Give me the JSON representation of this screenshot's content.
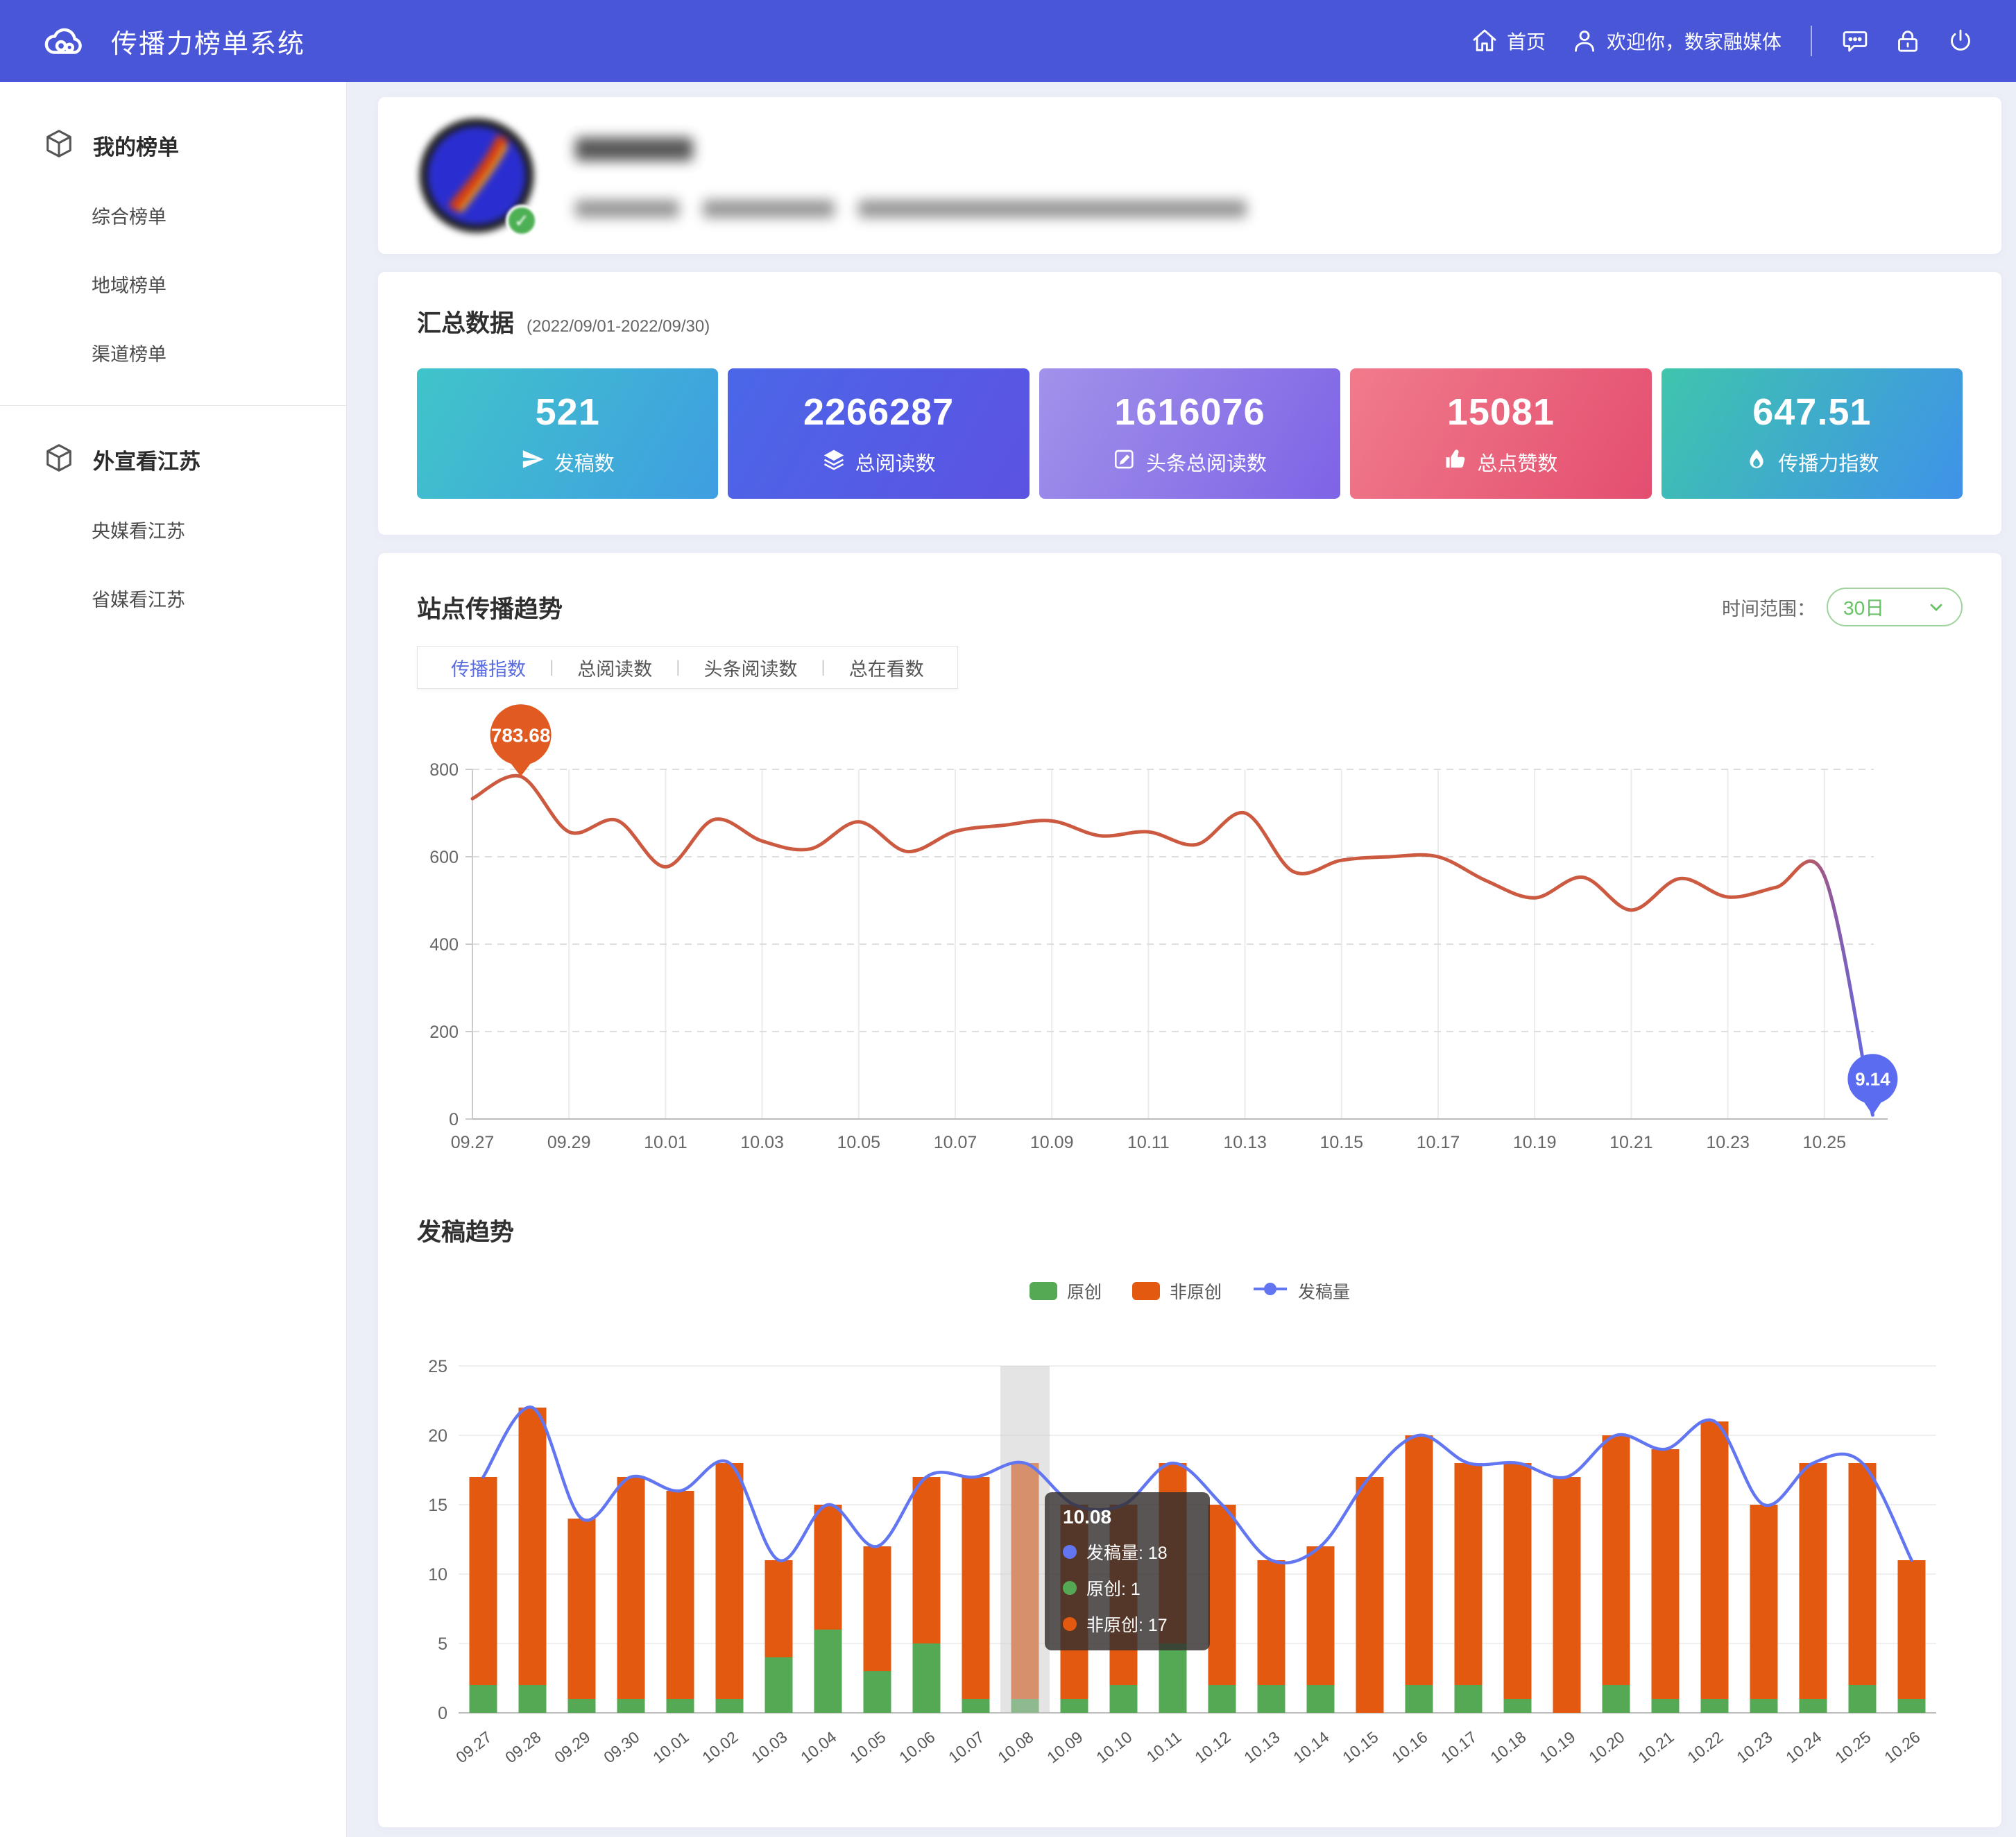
{
  "topbar": {
    "title": "传播力榜单系统",
    "home_label": "首页",
    "welcome": "欢迎你，数家融媒体",
    "bg_color": "#4a56d8"
  },
  "sidebar": {
    "groups": [
      {
        "label": "我的榜单",
        "items": [
          "综合榜单",
          "地域榜单",
          "渠道榜单"
        ]
      },
      {
        "label": "外宣看江苏",
        "items": [
          "央媒看江苏",
          "省媒看江苏"
        ]
      }
    ]
  },
  "summary": {
    "title": "汇总数据",
    "date_range": "(2022/09/01-2022/09/30)",
    "stats": [
      {
        "value": "521",
        "label": "发稿数",
        "icon": "send-icon",
        "from": "#40c4c9",
        "to": "#3f9ee2"
      },
      {
        "value": "2266287",
        "label": "总阅读数",
        "icon": "layers-icon",
        "from": "#4b67e8",
        "to": "#5c52e2"
      },
      {
        "value": "1616076",
        "label": "头条总阅读数",
        "icon": "edit-icon",
        "from": "#a292ea",
        "to": "#7e63e6"
      },
      {
        "value": "15081",
        "label": "总点赞数",
        "icon": "thumb-up-icon",
        "from": "#f07b8b",
        "to": "#e44e70"
      },
      {
        "value": "647.51",
        "label": "传播力指数",
        "icon": "flame-icon",
        "from": "#3fc5ad",
        "to": "#3f92e9"
      }
    ]
  },
  "trend": {
    "title": "站点传播趋势",
    "tabs": [
      {
        "label": "传播指数",
        "active": true
      },
      {
        "label": "总阅读数",
        "active": false
      },
      {
        "label": "头条阅读数",
        "active": false
      },
      {
        "label": "总在看数",
        "active": false
      }
    ],
    "time_range_label": "时间范围：",
    "time_range_value": "30日"
  },
  "publish": {
    "title": "发稿趋势",
    "legend": [
      {
        "name": "原创",
        "type": "swatch",
        "color": "#55a955"
      },
      {
        "name": "非原创",
        "type": "swatch",
        "color": "#e2590f"
      },
      {
        "name": "发稿量",
        "type": "line",
        "color": "#6276f2"
      }
    ],
    "tooltip": {
      "date": "10.08",
      "rows": [
        {
          "color": "#6276f2",
          "text": "发稿量: 18"
        },
        {
          "color": "#55a955",
          "text": "原创: 1"
        },
        {
          "color": "#e2590f",
          "text": "非原创: 17"
        }
      ]
    }
  },
  "chart_data": [
    {
      "type": "line",
      "title": "站点传播趋势 - 传播指数",
      "x": [
        "09.27",
        "09.28",
        "09.29",
        "09.30",
        "10.01",
        "10.02",
        "10.03",
        "10.04",
        "10.05",
        "10.06",
        "10.07",
        "10.08",
        "10.09",
        "10.10",
        "10.11",
        "10.12",
        "10.13",
        "10.14",
        "10.15",
        "10.16",
        "10.17",
        "10.18",
        "10.19",
        "10.20",
        "10.21",
        "10.22",
        "10.23",
        "10.24",
        "10.25",
        "10.26"
      ],
      "series": [
        {
          "name": "传播指数",
          "values": [
            733,
            783.68,
            657,
            683,
            577,
            685,
            636,
            618,
            680,
            612,
            658,
            672,
            682,
            648,
            657,
            628,
            700,
            566,
            592,
            600,
            600,
            545,
            506,
            553,
            478,
            550,
            508,
            530,
            556,
            9.14
          ]
        }
      ],
      "ylim": [
        0,
        800
      ],
      "yticks": [
        0,
        200,
        400,
        600,
        800
      ],
      "x_label_every": 2,
      "grid": true,
      "line_color": "#cc5a41",
      "end_color": "#5b6cf0",
      "markers": [
        {
          "index": 1,
          "label": "783.68",
          "color": "#e05a21"
        },
        {
          "index": 29,
          "label": "9.14",
          "color": "#5b6cf0"
        }
      ]
    },
    {
      "type": "bar",
      "title": "发稿趋势",
      "categories": [
        "09.27",
        "09.28",
        "09.29",
        "09.30",
        "10.01",
        "10.02",
        "10.03",
        "10.04",
        "10.05",
        "10.06",
        "10.07",
        "10.08",
        "10.09",
        "10.10",
        "10.11",
        "10.12",
        "10.13",
        "10.14",
        "10.15",
        "10.16",
        "10.17",
        "10.18",
        "10.19",
        "10.20",
        "10.21",
        "10.22",
        "10.23",
        "10.24",
        "10.25",
        "10.26"
      ],
      "series": [
        {
          "name": "原创",
          "type": "bar",
          "stack": true,
          "color": "#55a955",
          "values": [
            2,
            2,
            1,
            1,
            1,
            1,
            4,
            6,
            3,
            5,
            1,
            1,
            1,
            2,
            5,
            2,
            2,
            2,
            0,
            2,
            2,
            1,
            0,
            2,
            1,
            1,
            1,
            1,
            2,
            1
          ]
        },
        {
          "name": "非原创",
          "type": "bar",
          "stack": true,
          "color": "#e2590f",
          "values": [
            15,
            20,
            13,
            16,
            15,
            17,
            7,
            9,
            9,
            12,
            16,
            17,
            14,
            13,
            13,
            13,
            9,
            10,
            17,
            18,
            16,
            17,
            17,
            18,
            18,
            20,
            14,
            17,
            16,
            10
          ]
        },
        {
          "name": "发稿量",
          "type": "line",
          "color": "#6276f2",
          "values": [
            17,
            22,
            14,
            17,
            16,
            18,
            11,
            15,
            12,
            17,
            17,
            18,
            15,
            15,
            18,
            15,
            11,
            12,
            17,
            20,
            18,
            18,
            17,
            20,
            19,
            21,
            15,
            18,
            18,
            11
          ]
        }
      ],
      "ylim": [
        0,
        25
      ],
      "yticks": [
        0,
        5,
        10,
        15,
        20,
        25
      ],
      "grid": true,
      "highlight_index": 11,
      "legend_position": "top-center"
    }
  ]
}
